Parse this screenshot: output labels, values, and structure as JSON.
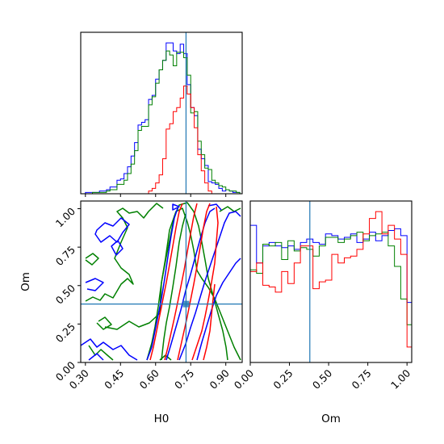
{
  "chart_data": {
    "type": "corner",
    "params": [
      "H0",
      "Om"
    ],
    "truth": {
      "H0": 0.73,
      "Om": 0.38
    },
    "colors": {
      "blue": "#0000ff",
      "green": "#008000",
      "red": "#ff0000",
      "truth": "#1f77b4"
    },
    "panels": [
      {
        "id": "hist-H0",
        "type": "histogram",
        "xlabel": "",
        "ylabel": "",
        "xlim": [
          0.28,
          0.97
        ],
        "ticks": [
          0.3,
          0.45,
          0.6,
          0.75,
          0.9
        ],
        "bin_edges": [
          0.3,
          0.315,
          0.33,
          0.345,
          0.36,
          0.375,
          0.39,
          0.405,
          0.42,
          0.435,
          0.45,
          0.465,
          0.48,
          0.495,
          0.51,
          0.525,
          0.54,
          0.555,
          0.57,
          0.585,
          0.6,
          0.615,
          0.63,
          0.645,
          0.66,
          0.675,
          0.69,
          0.705,
          0.72,
          0.735,
          0.75,
          0.765,
          0.78,
          0.795,
          0.81,
          0.825,
          0.84,
          0.855,
          0.87,
          0.885,
          0.9,
          0.915,
          0.93,
          0.945,
          0.96
        ],
        "series": [
          {
            "color": "blue",
            "counts": [
              1,
              1,
              1,
              1,
              2,
              2,
              3,
              5,
              5,
              10,
              11,
              15,
              20,
              28,
              38,
              51,
              53,
              55,
              70,
              73,
              85,
              92,
              99,
              112,
              112,
              106,
              104,
              111,
              104,
              81,
              64,
              58,
              33,
              26,
              21,
              9,
              8,
              7,
              4,
              2,
              3,
              2,
              1,
              1
            ]
          },
          {
            "color": "green",
            "counts": [
              0,
              0,
              1,
              1,
              1,
              1,
              2,
              3,
              3,
              7,
              7,
              10,
              15,
              22,
              32,
              47,
              50,
              50,
              66,
              72,
              82,
              92,
              99,
              106,
              103,
              95,
              105,
              105,
              101,
              88,
              60,
              61,
              39,
              29,
              19,
              18,
              10,
              8,
              6,
              5,
              3,
              2,
              2,
              1
            ]
          },
          {
            "color": "red",
            "counts": [
              0,
              0,
              0,
              0,
              0,
              0,
              0,
              0,
              0,
              0,
              0,
              0,
              0,
              0,
              0,
              0,
              0,
              0,
              2,
              4,
              8,
              14,
              26,
              48,
              52,
              61,
              64,
              71,
              80,
              74,
              64,
              49,
              29,
              17,
              8,
              2,
              0,
              0,
              0,
              0,
              0,
              0,
              0,
              0
            ]
          }
        ]
      },
      {
        "id": "contour-H0-Om",
        "type": "contour",
        "xlabel": "H0",
        "ylabel": "Om",
        "xlim": [
          0.28,
          0.97
        ],
        "ylim": [
          0.0,
          1.05
        ],
        "xticks": [
          0.3,
          0.45,
          0.6,
          0.75,
          0.9
        ],
        "yticks": [
          0.0,
          0.25,
          0.5,
          0.75,
          1.0
        ]
      },
      {
        "id": "hist-Om",
        "type": "histogram",
        "xlabel": "Om",
        "ylabel": "",
        "xlim": [
          0.0,
          1.03
        ],
        "ticks": [
          0.0,
          0.25,
          0.5,
          0.75,
          1.0
        ],
        "bin_edges": [
          0.0,
          0.04,
          0.08,
          0.12,
          0.16,
          0.2,
          0.24,
          0.28,
          0.32,
          0.36,
          0.4,
          0.44,
          0.48,
          0.52,
          0.56,
          0.6,
          0.64,
          0.68,
          0.72,
          0.76,
          0.8,
          0.84,
          0.88,
          0.92,
          0.96,
          1.0,
          1.04
        ],
        "series": [
          {
            "color": "blue",
            "counts": [
              80,
              58,
              68,
              70,
              68,
              67,
              68,
              66,
              70,
              72,
              70,
              69,
              75,
              74,
              72,
              73,
              75,
              70,
              72,
              76,
              71,
              74,
              77,
              78,
              74,
              35
            ]
          },
          {
            "color": "green",
            "counts": [
              54,
              52,
              69,
              68,
              70,
              60,
              71,
              65,
              67,
              66,
              62,
              68,
              73,
              73,
              70,
              72,
              74,
              76,
              71,
              74,
              75,
              76,
              68,
              56,
              37,
              22
            ]
          },
          {
            "color": "red",
            "counts": [
              53,
              58,
              45,
              44,
              41,
              53,
              46,
              58,
              68,
              68,
              43,
              47,
              48,
              63,
              58,
              61,
              62,
              66,
              75,
              84,
              88,
              75,
              80,
              72,
              63,
              9
            ]
          }
        ]
      }
    ]
  }
}
